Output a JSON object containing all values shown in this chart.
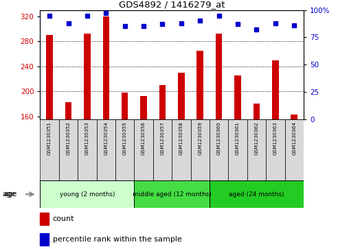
{
  "title": "GDS4892 / 1416279_at",
  "samples": [
    "GSM1230351",
    "GSM1230352",
    "GSM1230353",
    "GSM1230354",
    "GSM1230355",
    "GSM1230356",
    "GSM1230357",
    "GSM1230358",
    "GSM1230359",
    "GSM1230360",
    "GSM1230361",
    "GSM1230362",
    "GSM1230363",
    "GSM1230364"
  ],
  "counts": [
    290,
    183,
    292,
    320,
    198,
    192,
    210,
    230,
    265,
    292,
    225,
    180,
    250,
    163
  ],
  "percentiles": [
    95,
    88,
    95,
    97,
    85,
    85,
    87,
    88,
    90,
    95,
    87,
    82,
    88,
    86
  ],
  "ylim_left": [
    155,
    330
  ],
  "ylim_right": [
    0,
    100
  ],
  "yticks_left": [
    160,
    200,
    240,
    280,
    320
  ],
  "yticks_right": [
    0,
    25,
    50,
    75,
    100
  ],
  "grid_lines": [
    200,
    240,
    280
  ],
  "groups": [
    {
      "label": "young (2 months)",
      "start": 0,
      "end": 5,
      "color": "#ccffcc"
    },
    {
      "label": "middle aged (12 months)",
      "start": 5,
      "end": 9,
      "color": "#44dd44"
    },
    {
      "label": "aged (24 months)",
      "start": 9,
      "end": 14,
      "color": "#22cc22"
    }
  ],
  "bar_color": "#cc0000",
  "dot_color": "#0000cc",
  "cell_bg": "#d8d8d8",
  "plot_bg": "#ffffff",
  "age_label": "age",
  "legend_count": "count",
  "legend_percentile": "percentile rank within the sample",
  "bar_width": 0.35
}
